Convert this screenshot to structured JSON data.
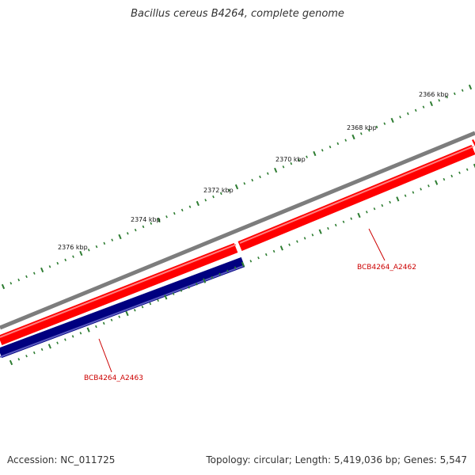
{
  "title": "Bacillus cereus B4264, complete genome",
  "footer": {
    "accession": "Accession: NC_011725",
    "summary": "Topology: circular; Length: 5,419,036 bp; Genes: 5,547"
  },
  "map": {
    "scale_labels": [
      "2366 kbp",
      "2368 kbp",
      "2370 kbp",
      "2372 kbp",
      "2374 kbp",
      "2376 kbp"
    ],
    "features": [
      {
        "label": "BCB4264_A2462",
        "strand": "forward",
        "color": "#ff0000",
        "label_color": "#cc0000"
      },
      {
        "label": "BCB4264_A2463",
        "strand": "reverse",
        "color": "#000080",
        "label_color": "#cc0000"
      }
    ],
    "colors": {
      "backbone": "#808080",
      "forward_gene": "#ff0000",
      "reverse_gene": "#000080",
      "tick": "#2e7d32",
      "label": "#cc0000"
    }
  }
}
